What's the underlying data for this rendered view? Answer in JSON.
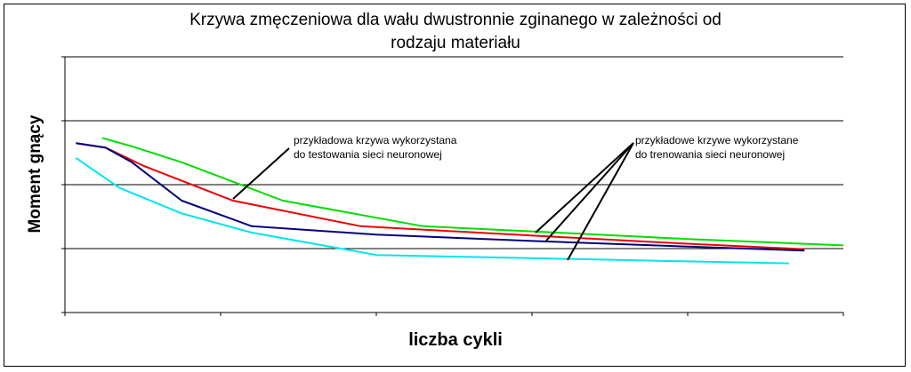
{
  "chart_data": {
    "type": "line",
    "title_lines": [
      "Krzywa zmęczeniowa dla wału dwustronnie zginanego w zależności od",
      "rodzaju materiału"
    ],
    "xlabel": "liczba cykli",
    "ylabel": "Moment gnący",
    "x_ticks": [
      0,
      1,
      2,
      3,
      4,
      5
    ],
    "y_gridlines": [
      0,
      1,
      2,
      3,
      4
    ],
    "xlim": [
      0,
      5
    ],
    "ylim": [
      0,
      4
    ],
    "grid": true,
    "legend": "none",
    "series": [
      {
        "color": "#00dd00",
        "x": [
          0.24,
          0.43,
          0.75,
          1.4,
          2.3,
          3.0,
          4.0,
          5.0
        ],
        "y": [
          2.73,
          2.6,
          2.35,
          1.75,
          1.35,
          1.27,
          1.15,
          1.05
        ]
      },
      {
        "color": "#ee0000",
        "x": [
          0.07,
          0.26,
          0.5,
          1.08,
          1.9,
          2.8,
          3.8,
          4.75
        ],
        "y": [
          2.65,
          2.58,
          2.3,
          1.75,
          1.35,
          1.23,
          1.1,
          0.99
        ]
      },
      {
        "color": "#000080",
        "x": [
          0.07,
          0.26,
          0.43,
          0.75,
          1.2,
          2.0,
          3.0,
          4.0,
          4.75
        ],
        "y": [
          2.65,
          2.58,
          2.35,
          1.75,
          1.35,
          1.22,
          1.12,
          1.03,
          0.97
        ]
      },
      {
        "color": "#00e5ee",
        "x": [
          0.07,
          0.35,
          0.75,
          1.2,
          2.0,
          3.0,
          4.0,
          4.65
        ],
        "y": [
          2.42,
          1.95,
          1.55,
          1.25,
          0.9,
          0.85,
          0.8,
          0.77
        ]
      }
    ],
    "annotations": [
      {
        "lines": [
          "przykładowa krzywa wykorzystana",
          "do testowania sieci neuronowej"
        ]
      },
      {
        "lines": [
          "przykładowe krzywe wykorzystane",
          "do trenowania sieci neuronowej"
        ]
      }
    ]
  }
}
